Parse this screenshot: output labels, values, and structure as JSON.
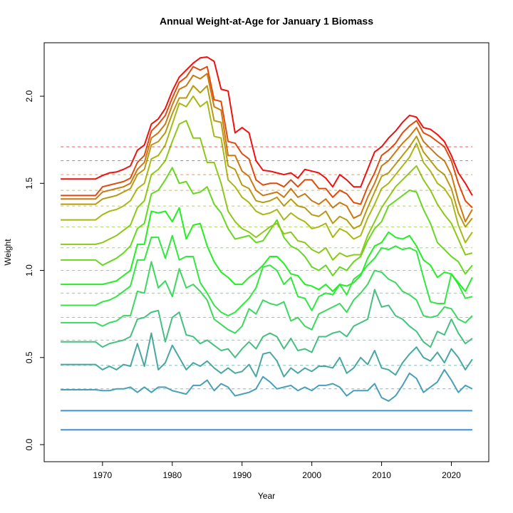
{
  "chart_data": {
    "type": "line",
    "title": "Annual Weight-at-Age for January 1 Biomass",
    "x_label": "Year",
    "y_label": "Weight",
    "x": [
      1964,
      1965,
      1966,
      1967,
      1968,
      1969,
      1970,
      1971,
      1972,
      1973,
      1974,
      1975,
      1976,
      1977,
      1978,
      1979,
      1980,
      1981,
      1982,
      1983,
      1984,
      1985,
      1986,
      1987,
      1988,
      1989,
      1990,
      1991,
      1992,
      1993,
      1994,
      1995,
      1996,
      1997,
      1998,
      1999,
      2000,
      2001,
      2002,
      2003,
      2004,
      2005,
      2006,
      2007,
      2008,
      2009,
      2010,
      2011,
      2012,
      2013,
      2014,
      2015,
      2016,
      2017,
      2018,
      2019,
      2020,
      2021,
      2022,
      2023
    ],
    "xlim": [
      1961.64,
      2025.36
    ],
    "xticks": [
      1970,
      1980,
      1990,
      2000,
      2010,
      2020
    ],
    "ylim": [
      -0.098,
      2.307
    ],
    "yticks": [
      {
        "value": 0,
        "label": "0.0"
      },
      {
        "value": 0.5,
        "label": "0.5"
      },
      {
        "value": 1,
        "label": "1.0"
      },
      {
        "value": 1.5,
        "label": "1.5"
      },
      {
        "value": 2,
        "label": "2.0"
      }
    ],
    "series": [
      {
        "color": "#3d8fd8",
        "mean": 0.085,
        "values": [
          0.085,
          0.085,
          0.085,
          0.085,
          0.085,
          0.085,
          0.085,
          0.085,
          0.085,
          0.085,
          0.085,
          0.085,
          0.085,
          0.085,
          0.085,
          0.085,
          0.085,
          0.085,
          0.085,
          0.085,
          0.085,
          0.085,
          0.085,
          0.085,
          0.085,
          0.085,
          0.085,
          0.085,
          0.085,
          0.085,
          0.085,
          0.085,
          0.085,
          0.085,
          0.085,
          0.085,
          0.085,
          0.085,
          0.085,
          0.085,
          0.085,
          0.085,
          0.085,
          0.085,
          0.085,
          0.085,
          0.085,
          0.085,
          0.085,
          0.085,
          0.085,
          0.085,
          0.085,
          0.085,
          0.085,
          0.085,
          0.085,
          0.085,
          0.085,
          0.085
        ]
      },
      {
        "color": "#3d94d0",
        "mean": 0.195,
        "values": [
          0.195,
          0.195,
          0.195,
          0.195,
          0.195,
          0.195,
          0.195,
          0.195,
          0.195,
          0.195,
          0.195,
          0.195,
          0.195,
          0.195,
          0.195,
          0.195,
          0.195,
          0.195,
          0.195,
          0.195,
          0.195,
          0.195,
          0.195,
          0.195,
          0.195,
          0.195,
          0.195,
          0.195,
          0.195,
          0.195,
          0.195,
          0.195,
          0.195,
          0.195,
          0.195,
          0.195,
          0.195,
          0.195,
          0.195,
          0.195,
          0.195,
          0.195,
          0.195,
          0.195,
          0.195,
          0.195,
          0.195,
          0.195,
          0.195,
          0.195,
          0.195,
          0.195,
          0.195,
          0.195,
          0.195,
          0.195,
          0.195,
          0.195,
          0.195,
          0.195
        ]
      },
      {
        "color": "#47a0b8",
        "mean": 0.32,
        "values": [
          0.315,
          0.315,
          0.315,
          0.315,
          0.315,
          0.315,
          0.31,
          0.31,
          0.32,
          0.32,
          0.33,
          0.3,
          0.33,
          0.3,
          0.33,
          0.33,
          0.31,
          0.3,
          0.29,
          0.34,
          0.34,
          0.37,
          0.31,
          0.35,
          0.33,
          0.28,
          0.29,
          0.3,
          0.32,
          0.39,
          0.36,
          0.32,
          0.33,
          0.34,
          0.31,
          0.33,
          0.31,
          0.34,
          0.34,
          0.35,
          0.33,
          0.28,
          0.31,
          0.31,
          0.31,
          0.35,
          0.27,
          0.25,
          0.28,
          0.34,
          0.41,
          0.38,
          0.3,
          0.33,
          0.36,
          0.43,
          0.37,
          0.3,
          0.34,
          0.32
        ]
      },
      {
        "color": "#48a8a0",
        "mean": 0.455,
        "values": [
          0.46,
          0.46,
          0.46,
          0.46,
          0.46,
          0.46,
          0.43,
          0.45,
          0.43,
          0.46,
          0.45,
          0.58,
          0.45,
          0.64,
          0.43,
          0.47,
          0.57,
          0.5,
          0.43,
          0.47,
          0.45,
          0.48,
          0.44,
          0.41,
          0.44,
          0.41,
          0.42,
          0.46,
          0.39,
          0.52,
          0.53,
          0.48,
          0.39,
          0.44,
          0.41,
          0.44,
          0.42,
          0.45,
          0.45,
          0.44,
          0.5,
          0.41,
          0.44,
          0.5,
          0.46,
          0.54,
          0.44,
          0.43,
          0.4,
          0.47,
          0.52,
          0.56,
          0.5,
          0.48,
          0.53,
          0.47,
          0.55,
          0.5,
          0.43,
          0.49
        ]
      },
      {
        "color": "#44c080",
        "mean": 0.6,
        "values": [
          0.59,
          0.59,
          0.59,
          0.59,
          0.59,
          0.59,
          0.56,
          0.58,
          0.59,
          0.6,
          0.62,
          0.72,
          0.73,
          0.76,
          0.77,
          0.59,
          0.73,
          0.76,
          0.63,
          0.62,
          0.58,
          0.6,
          0.57,
          0.54,
          0.55,
          0.5,
          0.55,
          0.59,
          0.55,
          0.62,
          0.64,
          0.62,
          0.55,
          0.61,
          0.54,
          0.55,
          0.53,
          0.62,
          0.62,
          0.64,
          0.65,
          0.62,
          0.68,
          0.7,
          0.72,
          0.89,
          0.79,
          0.8,
          0.74,
          0.72,
          0.68,
          0.65,
          0.59,
          0.56,
          0.65,
          0.63,
          0.72,
          0.64,
          0.58,
          0.61
        ]
      },
      {
        "color": "#3cd860",
        "mean": 0.73,
        "values": [
          0.7,
          0.7,
          0.7,
          0.7,
          0.7,
          0.7,
          0.68,
          0.7,
          0.71,
          0.74,
          0.74,
          0.88,
          0.87,
          1.05,
          0.9,
          0.94,
          0.85,
          1.01,
          0.9,
          0.92,
          0.88,
          0.83,
          0.72,
          0.69,
          0.66,
          0.64,
          0.68,
          0.78,
          0.75,
          0.83,
          0.81,
          0.8,
          0.82,
          0.71,
          0.73,
          0.68,
          0.66,
          0.75,
          0.77,
          0.79,
          0.81,
          0.76,
          0.83,
          0.87,
          0.92,
          1.0,
          0.99,
          0.95,
          0.93,
          0.88,
          0.86,
          0.83,
          0.74,
          0.73,
          0.74,
          0.79,
          0.78,
          0.72,
          0.7,
          0.74
        ]
      },
      {
        "color": "#30e840",
        "mean": 0.87,
        "values": [
          0.8,
          0.8,
          0.8,
          0.8,
          0.8,
          0.8,
          0.82,
          0.83,
          0.85,
          0.88,
          0.91,
          1.06,
          1.06,
          1.19,
          1.19,
          1.07,
          1.2,
          1.06,
          1.08,
          1.08,
          0.93,
          0.87,
          0.8,
          0.76,
          0.74,
          0.76,
          0.8,
          0.84,
          0.9,
          1.02,
          1.03,
          1.0,
          0.92,
          0.96,
          0.85,
          0.84,
          0.77,
          0.85,
          0.87,
          0.86,
          0.92,
          0.86,
          0.95,
          0.98,
          1.03,
          1.07,
          1.13,
          1.12,
          1.14,
          1.12,
          1.13,
          1.11,
          0.96,
          0.82,
          0.81,
          0.81,
          0.98,
          0.92,
          0.84,
          0.85
        ]
      },
      {
        "color": "#22f022",
        "mean": 1.0,
        "values": [
          0.92,
          0.92,
          0.92,
          0.92,
          0.92,
          0.92,
          0.92,
          0.93,
          0.94,
          0.97,
          1.0,
          1.15,
          1.15,
          1.34,
          1.33,
          1.34,
          1.28,
          1.36,
          1.18,
          1.26,
          1.27,
          1.14,
          1.05,
          0.99,
          0.96,
          0.92,
          0.92,
          0.96,
          0.99,
          1.03,
          1.08,
          1.08,
          1.04,
          0.98,
          0.97,
          0.92,
          0.91,
          0.89,
          0.92,
          0.88,
          0.92,
          0.91,
          0.93,
          0.97,
          1.07,
          1.14,
          1.16,
          1.22,
          1.19,
          1.18,
          1.2,
          1.14,
          1.06,
          1.03,
          0.96,
          0.99,
          0.98,
          0.93,
          0.88,
          0.96
        ]
      },
      {
        "color": "#66d820",
        "mean": 1.13,
        "values": [
          1.06,
          1.06,
          1.06,
          1.06,
          1.06,
          1.06,
          1.03,
          1.05,
          1.07,
          1.1,
          1.14,
          1.24,
          1.27,
          1.44,
          1.46,
          1.52,
          1.59,
          1.5,
          1.51,
          1.44,
          1.45,
          1.48,
          1.38,
          1.33,
          1.24,
          1.18,
          1.19,
          1.2,
          1.16,
          1.17,
          1.23,
          1.29,
          1.19,
          1.14,
          1.12,
          1.08,
          1.02,
          1.0,
          1.03,
          0.97,
          1.02,
          1.0,
          1.05,
          1.08,
          1.17,
          1.24,
          1.28,
          1.37,
          1.4,
          1.43,
          1.46,
          1.45,
          1.35,
          1.27,
          1.16,
          1.12,
          1.08,
          1.05,
          0.98,
          1.03
        ]
      },
      {
        "color": "#8cc81a",
        "mean": 1.25,
        "values": [
          1.15,
          1.15,
          1.15,
          1.15,
          1.15,
          1.15,
          1.16,
          1.18,
          1.2,
          1.23,
          1.26,
          1.36,
          1.4,
          1.55,
          1.58,
          1.63,
          1.74,
          1.84,
          1.86,
          1.76,
          1.76,
          1.62,
          1.62,
          1.5,
          1.34,
          1.28,
          1.24,
          1.22,
          1.19,
          1.22,
          1.25,
          1.27,
          1.21,
          1.22,
          1.17,
          1.16,
          1.12,
          1.1,
          1.13,
          1.06,
          1.1,
          1.08,
          1.09,
          1.09,
          1.2,
          1.28,
          1.36,
          1.42,
          1.48,
          1.52,
          1.56,
          1.6,
          1.52,
          1.46,
          1.38,
          1.32,
          1.27,
          1.18,
          1.09,
          1.1
        ]
      },
      {
        "color": "#a8b814",
        "mean": 1.37,
        "values": [
          1.29,
          1.29,
          1.29,
          1.29,
          1.29,
          1.29,
          1.32,
          1.34,
          1.35,
          1.37,
          1.4,
          1.47,
          1.5,
          1.64,
          1.66,
          1.72,
          1.84,
          1.96,
          1.94,
          2.0,
          1.94,
          1.97,
          1.77,
          1.76,
          1.52,
          1.48,
          1.42,
          1.39,
          1.34,
          1.32,
          1.33,
          1.35,
          1.29,
          1.33,
          1.3,
          1.28,
          1.24,
          1.25,
          1.27,
          1.19,
          1.24,
          1.22,
          1.18,
          1.2,
          1.3,
          1.38,
          1.47,
          1.5,
          1.55,
          1.6,
          1.65,
          1.73,
          1.62,
          1.57,
          1.5,
          1.47,
          1.41,
          1.26,
          1.16,
          1.22
        ]
      },
      {
        "color": "#b89a10",
        "mean": 1.46,
        "values": [
          1.38,
          1.38,
          1.38,
          1.38,
          1.38,
          1.38,
          1.41,
          1.42,
          1.43,
          1.45,
          1.47,
          1.55,
          1.58,
          1.72,
          1.74,
          1.79,
          1.9,
          1.99,
          1.99,
          2.06,
          2.02,
          2.06,
          1.86,
          1.85,
          1.6,
          1.58,
          1.49,
          1.47,
          1.4,
          1.39,
          1.4,
          1.42,
          1.37,
          1.41,
          1.37,
          1.36,
          1.32,
          1.31,
          1.34,
          1.27,
          1.31,
          1.29,
          1.24,
          1.26,
          1.36,
          1.45,
          1.54,
          1.56,
          1.61,
          1.66,
          1.71,
          1.77,
          1.68,
          1.63,
          1.58,
          1.55,
          1.47,
          1.33,
          1.25,
          1.3
        ]
      },
      {
        "color": "#cc7810",
        "mean": 1.55,
        "values": [
          1.41,
          1.41,
          1.41,
          1.41,
          1.41,
          1.41,
          1.45,
          1.46,
          1.47,
          1.48,
          1.5,
          1.58,
          1.62,
          1.76,
          1.79,
          1.84,
          1.95,
          2.04,
          2.06,
          2.12,
          2.1,
          2.13,
          1.94,
          1.92,
          1.66,
          1.66,
          1.57,
          1.54,
          1.46,
          1.43,
          1.44,
          1.45,
          1.42,
          1.47,
          1.42,
          1.44,
          1.4,
          1.38,
          1.41,
          1.36,
          1.39,
          1.37,
          1.3,
          1.32,
          1.42,
          1.5,
          1.6,
          1.63,
          1.68,
          1.73,
          1.77,
          1.82,
          1.74,
          1.7,
          1.66,
          1.63,
          1.55,
          1.4,
          1.28,
          1.35
        ]
      },
      {
        "color": "#e04a0c",
        "mean": 1.63,
        "values": [
          1.43,
          1.43,
          1.43,
          1.43,
          1.43,
          1.43,
          1.48,
          1.49,
          1.5,
          1.51,
          1.53,
          1.62,
          1.66,
          1.8,
          1.84,
          1.89,
          1.99,
          2.08,
          2.11,
          2.17,
          2.15,
          2.17,
          1.98,
          1.97,
          1.74,
          1.73,
          1.67,
          1.64,
          1.52,
          1.49,
          1.5,
          1.5,
          1.48,
          1.52,
          1.48,
          1.52,
          1.52,
          1.47,
          1.47,
          1.42,
          1.46,
          1.44,
          1.39,
          1.38,
          1.48,
          1.56,
          1.66,
          1.69,
          1.73,
          1.79,
          1.83,
          1.86,
          1.79,
          1.77,
          1.74,
          1.71,
          1.63,
          1.5,
          1.4,
          1.36
        ]
      },
      {
        "color": "#f01010",
        "mean": 1.71,
        "values": [
          1.525,
          1.525,
          1.525,
          1.525,
          1.525,
          1.525,
          1.545,
          1.56,
          1.565,
          1.58,
          1.6,
          1.69,
          1.72,
          1.84,
          1.87,
          1.93,
          2.03,
          2.11,
          2.15,
          2.19,
          2.22,
          2.225,
          2.2,
          2.04,
          2.03,
          1.79,
          1.82,
          1.79,
          1.63,
          1.575,
          1.57,
          1.56,
          1.55,
          1.56,
          1.53,
          1.58,
          1.57,
          1.56,
          1.53,
          1.48,
          1.55,
          1.52,
          1.48,
          1.48,
          1.58,
          1.68,
          1.71,
          1.76,
          1.8,
          1.85,
          1.89,
          1.88,
          1.82,
          1.81,
          1.78,
          1.74,
          1.66,
          1.56,
          1.5,
          1.43
        ]
      }
    ]
  }
}
